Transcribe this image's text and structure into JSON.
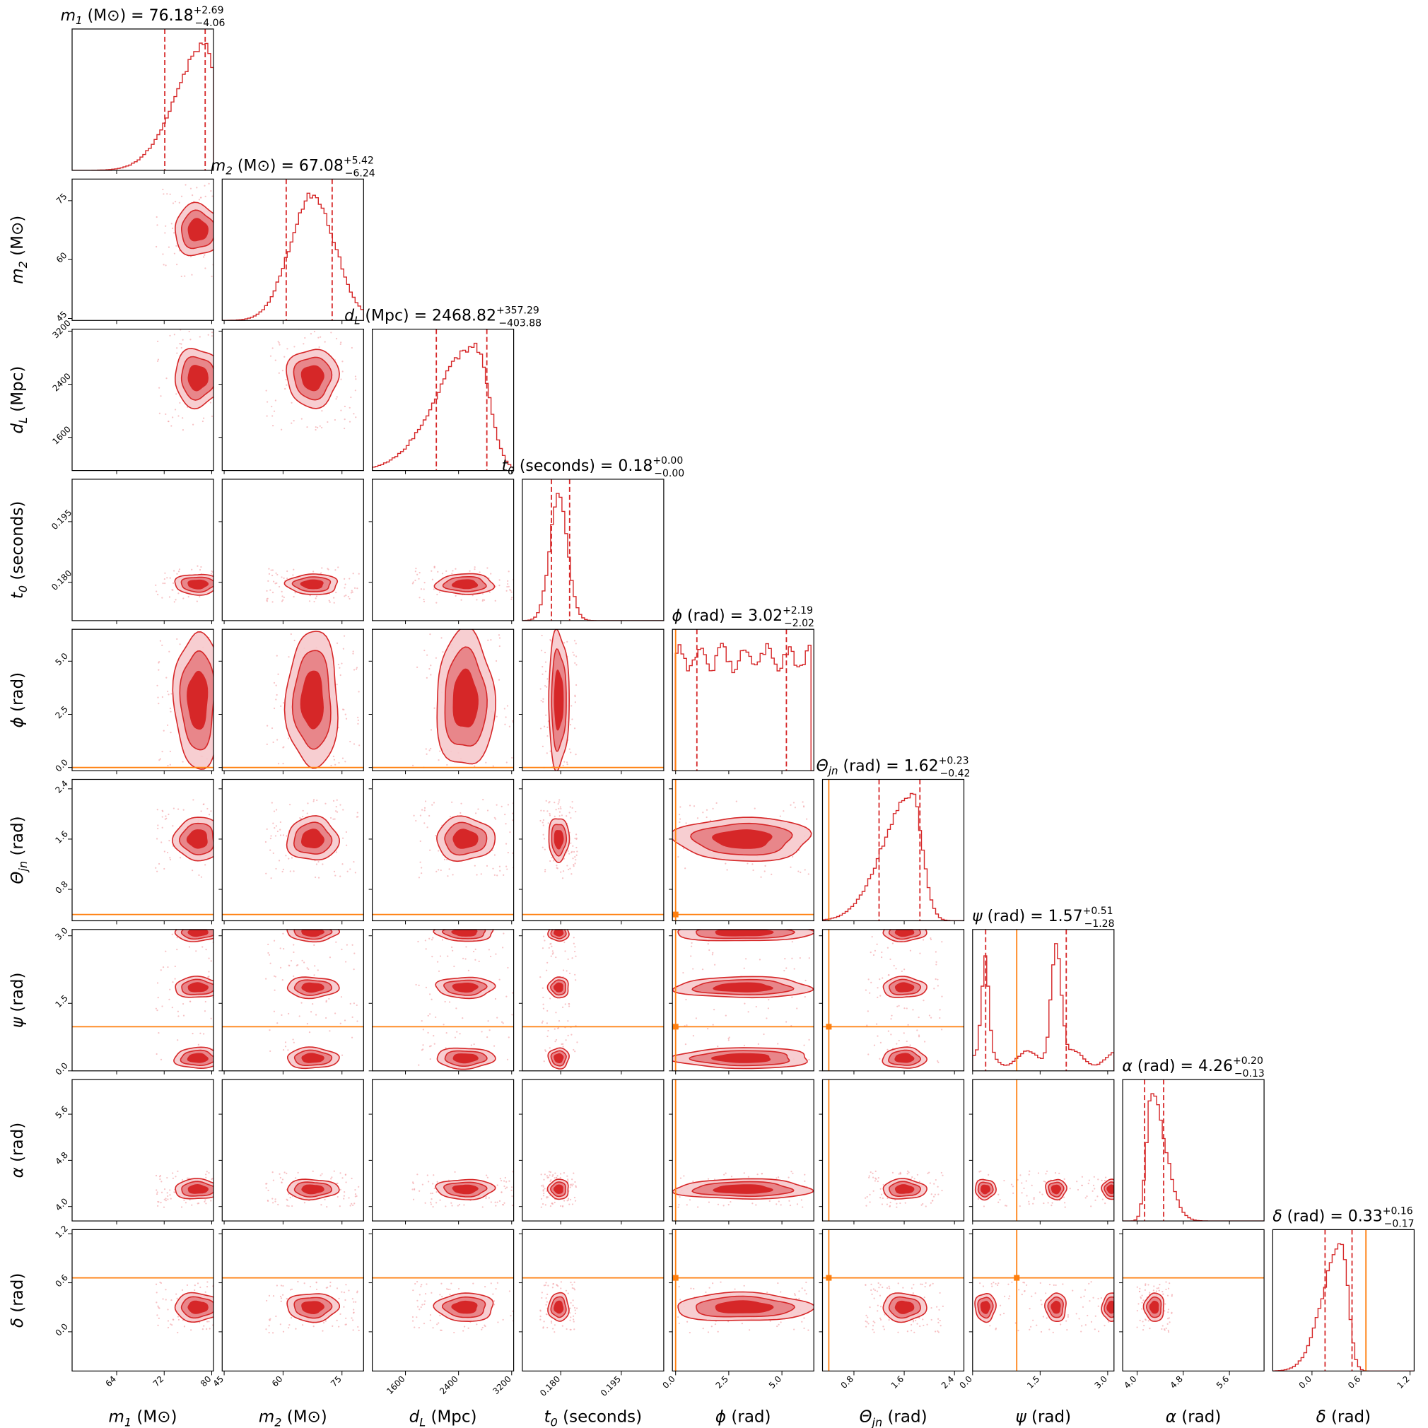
{
  "chart_data": {
    "type": "corner",
    "colors": {
      "posterior": "#d62728",
      "mid": "#e8868a",
      "light": "#f6c9cc",
      "truth": "#ff7f0e",
      "scatter": "#f4a8ad"
    },
    "parameters": [
      {
        "key": "m1",
        "label_main": "m",
        "label_sub": "1",
        "unit": " (M⊙)",
        "range": [
          56.5,
          80.3
        ],
        "ticks": [
          64,
          72,
          80
        ],
        "tick_labels": [
          "64",
          "72",
          "80"
        ],
        "median": "76.18",
        "plus": "+2.69",
        "minus": "−4.06",
        "q_low": 72.1,
        "q_high": 78.9,
        "truth": null,
        "mode": 79.0,
        "sd": 3.4,
        "skew": "left"
      },
      {
        "key": "m2",
        "label_main": "m",
        "label_sub": "2",
        "unit": " (M⊙)",
        "range": [
          44.5,
          80.5
        ],
        "ticks": [
          45,
          60,
          75
        ],
        "tick_labels": [
          "45",
          "60",
          "75"
        ],
        "median": "67.08",
        "plus": "+5.42",
        "minus": "−6.24",
        "q_low": 60.8,
        "q_high": 72.5,
        "truth": null,
        "mode": 67.5,
        "sd": 5.7,
        "skew": "none"
      },
      {
        "key": "dL",
        "label_main": "d",
        "label_sub": "L",
        "unit": " (Mpc)",
        "range": [
          1100,
          3230
        ],
        "ticks": [
          1600,
          2400,
          3200
        ],
        "tick_labels": [
          "1600",
          "2400",
          "3200"
        ],
        "median": "2468.82",
        "plus": "+357.29",
        "minus": "−403.88",
        "q_low": 2065,
        "q_high": 2826,
        "truth": null,
        "mode": 2650,
        "sd": 380,
        "skew": "left"
      },
      {
        "key": "t0",
        "label_main": "t",
        "label_sub": "0",
        "unit": " (seconds)",
        "range": [
          0.1705,
          0.2055
        ],
        "ticks": [
          0.18,
          0.195
        ],
        "tick_labels": [
          "0.180",
          "0.195"
        ],
        "median": "0.18",
        "plus": "+0.00",
        "minus": "−0.00",
        "q_low": 0.1777,
        "q_high": 0.1822,
        "truth": null,
        "mode": 0.1795,
        "sd": 0.0022,
        "skew": "none"
      },
      {
        "key": "phi",
        "label_main": "ϕ",
        "label_sub": "",
        "unit": " (rad)",
        "range": [
          -0.15,
          6.5
        ],
        "ticks": [
          0.0,
          2.5,
          5.0
        ],
        "tick_labels": [
          "0.0",
          "2.5",
          "5.0"
        ],
        "median": "3.02",
        "plus": "+2.19",
        "minus": "−2.02",
        "q_low": 1.0,
        "q_high": 5.21,
        "truth": 0.0,
        "mode": 3.1,
        "sd": 1.8,
        "skew": "flat"
      },
      {
        "key": "theta",
        "label_main": "Θ",
        "label_sub": "jn",
        "unit": " (rad)",
        "range": [
          0.3,
          2.55
        ],
        "ticks": [
          0.8,
          1.6,
          2.4
        ],
        "tick_labels": [
          "0.8",
          "1.6",
          "2.4"
        ],
        "median": "1.62",
        "plus": "+0.23",
        "minus": "−0.42",
        "q_low": 1.2,
        "q_high": 1.85,
        "truth": 0.4,
        "mode": 1.72,
        "sd": 0.3,
        "skew": "left"
      },
      {
        "key": "psi",
        "label_main": "ψ",
        "label_sub": "",
        "unit": " (rad)",
        "range": [
          0.0,
          3.14
        ],
        "ticks": [
          0.0,
          1.5,
          3.0
        ],
        "tick_labels": [
          "0.0",
          "1.5",
          "3.0"
        ],
        "median": "1.57",
        "plus": "+0.51",
        "minus": "−1.28",
        "q_low": 0.29,
        "q_high": 2.08,
        "truth": 0.98,
        "mode": 1.85,
        "sd": 0.8,
        "skew": "bimodal"
      },
      {
        "key": "alpha",
        "label_main": "α",
        "label_sub": "",
        "unit": " (rad)",
        "range": [
          3.75,
          6.2
        ],
        "ticks": [
          4.0,
          4.8,
          5.6
        ],
        "tick_labels": [
          "4.0",
          "4.8",
          "5.6"
        ],
        "median": "4.26",
        "plus": "+0.20",
        "minus": "−0.13",
        "q_low": 4.13,
        "q_high": 4.46,
        "truth": null,
        "mode": 4.25,
        "sd": 0.15,
        "skew": "right"
      },
      {
        "key": "delta",
        "label_main": "δ",
        "label_sub": "",
        "unit": " (rad)",
        "range": [
          -0.48,
          1.25
        ],
        "ticks": [
          0.0,
          0.6,
          1.2
        ],
        "tick_labels": [
          "0.0",
          "0.6",
          "1.2"
        ],
        "median": "0.33",
        "plus": "+0.16",
        "minus": "−0.17",
        "q_low": 0.16,
        "q_high": 0.49,
        "truth": 0.66,
        "mode": 0.36,
        "sd": 0.15,
        "skew": "left"
      }
    ],
    "title_template": "label (unit) = median",
    "contour_levels": 3,
    "grid": false,
    "legend": "none"
  }
}
